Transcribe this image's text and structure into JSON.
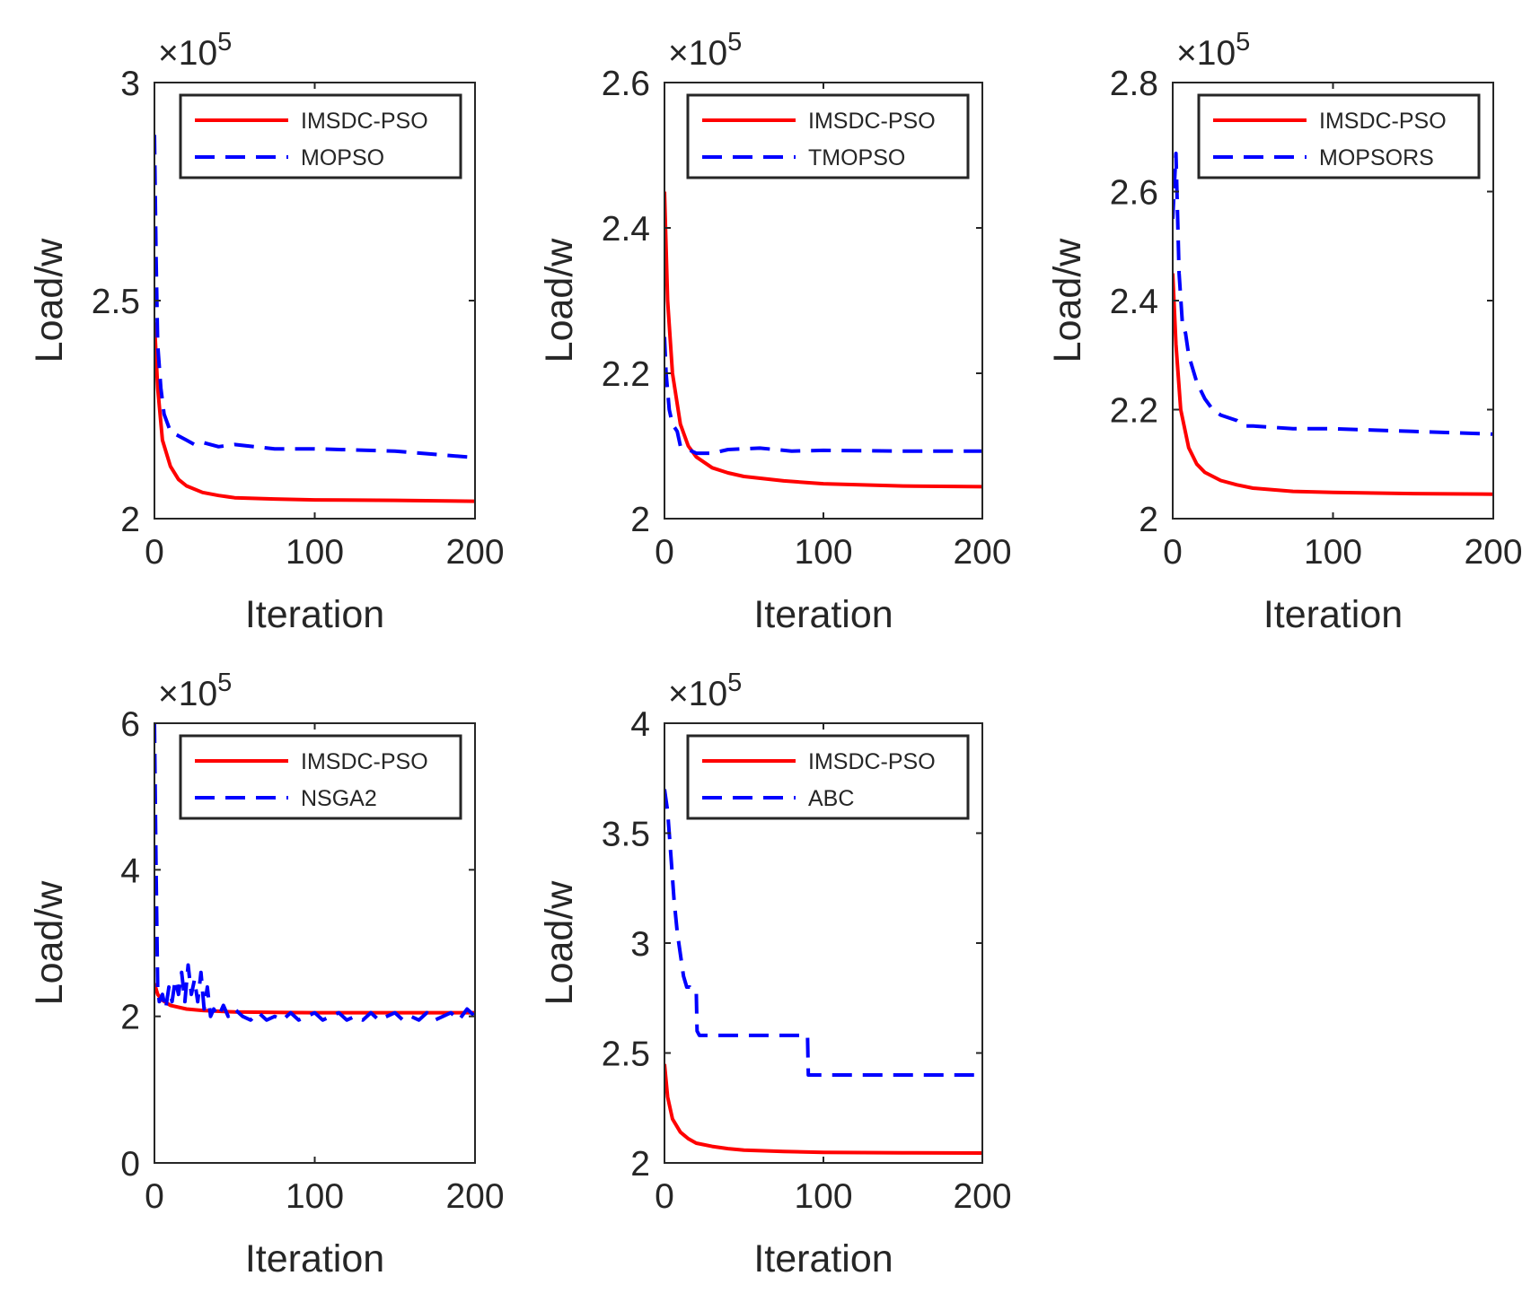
{
  "figure": {
    "colors": {
      "IMSDC-PSO": "#ff0000",
      "baseline": "#0000ff",
      "axes": "#262626",
      "background": "#ffffff"
    }
  },
  "chart_data": [
    {
      "type": "line",
      "xlabel": "Iteration",
      "ylabel": "Load/w",
      "xlim": [
        0,
        200
      ],
      "ylim": [
        2.0,
        3.0
      ],
      "xticks": [
        0,
        100,
        200
      ],
      "yticks": [
        2,
        2.5,
        3
      ],
      "ytick_labels": [
        "2",
        "2.5",
        "3"
      ],
      "y_multiplier": "×10",
      "y_multiplier_exp": "5",
      "legend_position": "top-right",
      "grid": false,
      "series": [
        {
          "name": "IMSDC-PSO",
          "color": "#ff0000",
          "style": "solid",
          "x": [
            0,
            2,
            5,
            10,
            15,
            20,
            30,
            40,
            50,
            75,
            100,
            150,
            200
          ],
          "y": [
            2.45,
            2.3,
            2.18,
            2.12,
            2.09,
            2.075,
            2.06,
            2.053,
            2.048,
            2.045,
            2.043,
            2.042,
            2.04
          ]
        },
        {
          "name": "MOPSO",
          "color": "#0000ff",
          "style": "dashed",
          "x": [
            0,
            1,
            2,
            4,
            6,
            10,
            15,
            20,
            25,
            30,
            40,
            50,
            75,
            100,
            150,
            200
          ],
          "y": [
            2.88,
            2.6,
            2.4,
            2.3,
            2.24,
            2.2,
            2.19,
            2.18,
            2.17,
            2.175,
            2.165,
            2.17,
            2.16,
            2.16,
            2.155,
            2.14
          ]
        }
      ]
    },
    {
      "type": "line",
      "xlabel": "Iteration",
      "ylabel": "Load/w",
      "xlim": [
        0,
        200
      ],
      "ylim": [
        2.0,
        2.6
      ],
      "xticks": [
        0,
        100,
        200
      ],
      "yticks": [
        2,
        2.2,
        2.4,
        2.6
      ],
      "ytick_labels": [
        "2",
        "2.2",
        "2.4",
        "2.6"
      ],
      "y_multiplier": "×10",
      "y_multiplier_exp": "5",
      "legend_position": "top-right",
      "grid": false,
      "series": [
        {
          "name": "IMSDC-PSO",
          "color": "#ff0000",
          "style": "solid",
          "x": [
            0,
            2,
            5,
            10,
            15,
            20,
            30,
            40,
            50,
            75,
            100,
            150,
            200
          ],
          "y": [
            2.45,
            2.3,
            2.2,
            2.13,
            2.1,
            2.085,
            2.07,
            2.063,
            2.058,
            2.052,
            2.048,
            2.045,
            2.044
          ]
        },
        {
          "name": "TMOPSO",
          "color": "#0000ff",
          "style": "dashed",
          "x": [
            0,
            1,
            3,
            5,
            8,
            10,
            15,
            20,
            30,
            40,
            60,
            80,
            100,
            150,
            200
          ],
          "y": [
            2.25,
            2.2,
            2.15,
            2.13,
            2.12,
            2.1,
            2.095,
            2.09,
            2.09,
            2.095,
            2.097,
            2.093,
            2.094,
            2.093,
            2.093
          ]
        }
      ]
    },
    {
      "type": "line",
      "xlabel": "Iteration",
      "ylabel": "Load/w",
      "xlim": [
        0,
        200
      ],
      "ylim": [
        2.0,
        2.8
      ],
      "xticks": [
        0,
        100,
        200
      ],
      "yticks": [
        2,
        2.2,
        2.4,
        2.6,
        2.8
      ],
      "ytick_labels": [
        "2",
        "2.2",
        "2.4",
        "2.6",
        "2.8"
      ],
      "y_multiplier": "×10",
      "y_multiplier_exp": "5",
      "legend_position": "top-right",
      "grid": false,
      "series": [
        {
          "name": "IMSDC-PSO",
          "color": "#ff0000",
          "style": "solid",
          "x": [
            0,
            2,
            5,
            10,
            15,
            20,
            30,
            40,
            50,
            75,
            100,
            150,
            200
          ],
          "y": [
            2.45,
            2.32,
            2.2,
            2.13,
            2.1,
            2.085,
            2.07,
            2.062,
            2.056,
            2.05,
            2.048,
            2.046,
            2.045
          ]
        },
        {
          "name": "MOPSORS",
          "color": "#0000ff",
          "style": "dashed",
          "x": [
            0,
            2,
            4,
            6,
            8,
            10,
            12,
            15,
            20,
            25,
            30,
            40,
            45,
            50,
            75,
            100,
            150,
            200
          ],
          "y": [
            2.55,
            2.67,
            2.45,
            2.36,
            2.34,
            2.3,
            2.28,
            2.25,
            2.22,
            2.2,
            2.19,
            2.18,
            2.17,
            2.17,
            2.165,
            2.165,
            2.16,
            2.155
          ]
        }
      ]
    },
    {
      "type": "line",
      "xlabel": "Iteration",
      "ylabel": "Load/w",
      "xlim": [
        0,
        200
      ],
      "ylim": [
        0,
        6
      ],
      "xticks": [
        0,
        100,
        200
      ],
      "yticks": [
        0,
        2,
        4,
        6
      ],
      "ytick_labels": [
        "0",
        "2",
        "4",
        "6"
      ],
      "y_multiplier": "×10",
      "y_multiplier_exp": "5",
      "legend_position": "top-right",
      "grid": false,
      "series": [
        {
          "name": "IMSDC-PSO",
          "color": "#ff0000",
          "style": "solid",
          "x": [
            0,
            2,
            5,
            10,
            20,
            30,
            50,
            75,
            100,
            150,
            200
          ],
          "y": [
            2.45,
            2.3,
            2.22,
            2.15,
            2.1,
            2.08,
            2.06,
            2.055,
            2.05,
            2.05,
            2.05
          ]
        },
        {
          "name": "NSGA2",
          "color": "#0000ff",
          "style": "dashed",
          "x": [
            0,
            1,
            2,
            3,
            5,
            7,
            9,
            11,
            13,
            15,
            17,
            19,
            21,
            23,
            25,
            27,
            29,
            31,
            33,
            35,
            37,
            40,
            43,
            46,
            50,
            55,
            60,
            65,
            70,
            75,
            80,
            85,
            90,
            95,
            100,
            105,
            110,
            115,
            120,
            125,
            130,
            135,
            140,
            145,
            150,
            155,
            160,
            165,
            170,
            175,
            180,
            185,
            190,
            195,
            200
          ],
          "y": [
            6.0,
            4.0,
            2.4,
            2.2,
            2.3,
            2.1,
            2.4,
            2.2,
            2.5,
            2.3,
            2.6,
            2.2,
            2.7,
            2.3,
            2.5,
            2.2,
            2.6,
            2.1,
            2.4,
            2.0,
            2.1,
            2.0,
            2.15,
            2.0,
            2.1,
            2.0,
            1.95,
            2.05,
            1.95,
            2.0,
            1.95,
            2.05,
            1.95,
            2.0,
            2.05,
            1.95,
            2.0,
            2.05,
            1.95,
            2.0,
            1.95,
            2.05,
            1.95,
            2.0,
            2.05,
            1.95,
            2.0,
            1.95,
            2.05,
            1.95,
            2.0,
            2.05,
            1.95,
            2.1,
            2.0
          ]
        }
      ]
    },
    {
      "type": "line",
      "xlabel": "Iteration",
      "ylabel": "Load/w",
      "xlim": [
        0,
        200
      ],
      "ylim": [
        2.0,
        4.0
      ],
      "xticks": [
        0,
        100,
        200
      ],
      "yticks": [
        2,
        2.5,
        3,
        3.5,
        4
      ],
      "ytick_labels": [
        "2",
        "2.5",
        "3",
        "3.5",
        "4"
      ],
      "y_multiplier": "×10",
      "y_multiplier_exp": "5",
      "legend_position": "top-right",
      "grid": false,
      "series": [
        {
          "name": "IMSDC-PSO",
          "color": "#ff0000",
          "style": "solid",
          "x": [
            0,
            2,
            5,
            10,
            15,
            20,
            30,
            40,
            50,
            75,
            100,
            150,
            200
          ],
          "y": [
            2.45,
            2.3,
            2.2,
            2.14,
            2.11,
            2.09,
            2.075,
            2.065,
            2.058,
            2.052,
            2.048,
            2.046,
            2.045
          ]
        },
        {
          "name": "ABC",
          "color": "#0000ff",
          "style": "dashed",
          "x": [
            0,
            2,
            4,
            6,
            8,
            10,
            12,
            14,
            16,
            18,
            20,
            20.5,
            22,
            24,
            90,
            90.5,
            92,
            200
          ],
          "y": [
            3.7,
            3.6,
            3.4,
            3.2,
            3.05,
            2.95,
            2.85,
            2.8,
            2.8,
            2.78,
            2.78,
            2.6,
            2.58,
            2.58,
            2.58,
            2.4,
            2.4,
            2.4
          ]
        }
      ]
    }
  ]
}
